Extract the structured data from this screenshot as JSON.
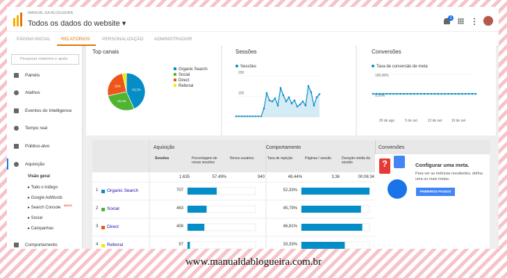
{
  "header": {
    "brand": "MANUAL DA BLOGUEIRA",
    "property": "Todos os dados do website",
    "notifications": "1"
  },
  "tabs": [
    "PÁGINA INICIAL",
    "RELATÓRIOS",
    "PERSONALIZAÇÃO",
    "ADMINISTRADOR"
  ],
  "active_tab": 1,
  "sidebar": {
    "search_placeholder": "Pesquisar relatórios e ajuda",
    "items": [
      "Painéis",
      "Atalhos",
      "Eventos do Intelligence",
      "Tempo real",
      "Público-alvo",
      "Aquisição"
    ],
    "subitems": [
      "Visão geral",
      "Todo o tráfego",
      "Google AdWords",
      "Search Console",
      "Social",
      "Campanhas"
    ],
    "new_badge": "NOVO",
    "last_item": "Comportamento"
  },
  "top_channels": {
    "title": "Top canais",
    "type": "pie",
    "series": [
      {
        "name": "Organic Search",
        "color": "#058dc7",
        "value": 43.2,
        "label": "43,2%"
      },
      {
        "name": "Social",
        "color": "#50b432",
        "value": 28.3,
        "label": "28,3%"
      },
      {
        "name": "Direct",
        "color": "#ed561b",
        "value": 25,
        "label": "25%"
      },
      {
        "name": "Referral",
        "color": "#edef00",
        "value": 3.5
      }
    ]
  },
  "sessions_chart": {
    "title": "Sessões",
    "type": "line",
    "series_name": "Sessões",
    "color": "#058dc7",
    "values": [
      2,
      2,
      2,
      2,
      2,
      2,
      2,
      2,
      2,
      2,
      40,
      115,
      80,
      75,
      90,
      55,
      140,
      105,
      75,
      95,
      65,
      80,
      50,
      60,
      75,
      55,
      150,
      120,
      55,
      95,
      110
    ],
    "ylim": [
      0,
      200
    ],
    "yticks": [
      100,
      200
    ]
  },
  "conversions_chart": {
    "title": "Conversões",
    "type": "line",
    "series_name": "Taxa de conversão de meta",
    "color": "#058dc7",
    "values": [
      0,
      0,
      0,
      0,
      0,
      0,
      0,
      0,
      0,
      0,
      0,
      0,
      0,
      0,
      0,
      0,
      0,
      0,
      0,
      0,
      0,
      0,
      0,
      0,
      0,
      0,
      0,
      0,
      0,
      0,
      0
    ],
    "ylim": [
      0,
      100
    ],
    "yticks": [
      {
        "value": 0,
        "label": "0,00%"
      },
      {
        "value": 100,
        "label": "100,00%"
      }
    ],
    "x_labels": [
      "29 de ago",
      "5 de set",
      "12 de set",
      "19 de set"
    ]
  },
  "table": {
    "groups": [
      "Aquisição",
      "Comportamento",
      "Conversões"
    ],
    "columns": [
      "Sessões",
      "Porcentagem de novas sessões",
      "Novos usuários",
      "Taxa de rejeição",
      "Páginas / sessão",
      "Duração média da sessão"
    ],
    "totals": [
      "1.635",
      "57,49%",
      "940",
      "48,44%",
      "3,36",
      "00:06:34"
    ],
    "rows": [
      {
        "index": "1",
        "name": "Organic Search",
        "color": "#058dc7",
        "sessions": 707,
        "bounce_rate": {
          "value": 52.33,
          "label": "52,33%"
        }
      },
      {
        "index": "2",
        "name": "Social",
        "color": "#50b432",
        "sessions": 463,
        "bounce_rate": {
          "value": 45.79,
          "label": "45,79%"
        }
      },
      {
        "index": "3",
        "name": "Direct",
        "color": "#ed561b",
        "sessions": 408,
        "bounce_rate": {
          "value": 46.81,
          "label": "46,81%"
        }
      },
      {
        "index": "4",
        "name": "Referral",
        "color": "#edef00",
        "sessions": 57,
        "bounce_rate": {
          "value": 33.33,
          "label": "33,33%"
        }
      }
    ]
  },
  "goal": {
    "title": "Configurar uma meta.",
    "text": "Para ver as métricas resultantes, defina uma ou mais metas.",
    "button": "PRIMEIROS PASSOS"
  },
  "footer": "www.manualdablogueira.com.br"
}
